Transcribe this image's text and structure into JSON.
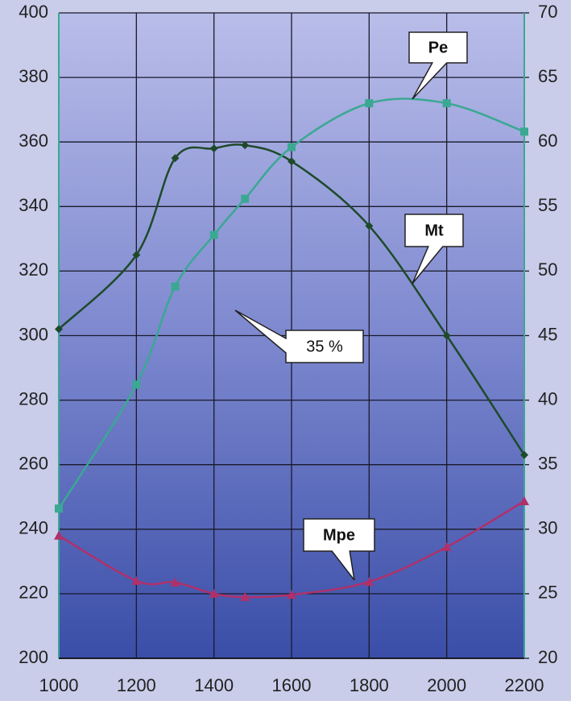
{
  "chart_data": {
    "type": "line",
    "x": [
      1000,
      1200,
      1300,
      1400,
      1480,
      1600,
      1800,
      2000,
      2200
    ],
    "xlim": [
      1000,
      2200
    ],
    "xticks": [
      1000,
      1200,
      1400,
      1600,
      1800,
      2000,
      2200
    ],
    "ylim": [
      200,
      400
    ],
    "yticks": [
      200,
      220,
      240,
      260,
      280,
      300,
      320,
      340,
      360,
      380,
      400
    ],
    "y2lim": [
      20,
      70
    ],
    "y2ticks": [
      20,
      25,
      30,
      35,
      40,
      45,
      50,
      55,
      60,
      65,
      70
    ],
    "grid": true,
    "series": [
      {
        "name": "Mt",
        "color": "#1e4a2a",
        "marker": "diamond",
        "values": [
          302,
          325,
          355,
          358,
          359,
          354,
          334,
          300,
          263
        ]
      },
      {
        "name": "Pe",
        "color": "#3aa892",
        "marker": "square",
        "axis": "y2",
        "values": [
          31.6,
          41.2,
          48.8,
          52.8,
          55.6,
          59.6,
          63.0,
          63.0,
          60.8
        ]
      },
      {
        "name": "Mpe",
        "color": "#b0306a",
        "marker": "triangle",
        "values": [
          238,
          224,
          223.5,
          220,
          219,
          219.7,
          223.7,
          234.5,
          248.7
        ]
      }
    ],
    "annotations": [
      "35 %"
    ]
  }
}
